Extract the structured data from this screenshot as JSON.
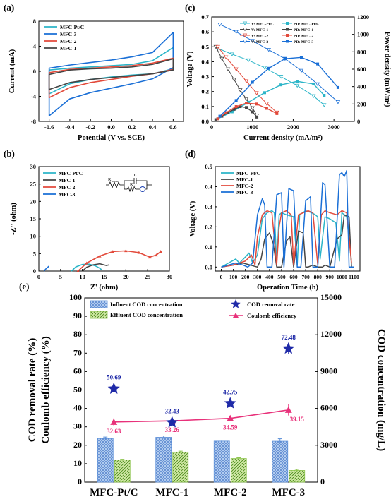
{
  "chart_data": [
    {
      "panel": "(a)",
      "type": "line",
      "xlabel": "Potential (V vs. SCE)",
      "ylabel": "Current (mA)",
      "xlim": [
        -0.7,
        0.7
      ],
      "ylim": [
        -8,
        8
      ],
      "xticks": [
        -0.6,
        -0.4,
        -0.2,
        0.0,
        0.2,
        0.4,
        0.6
      ],
      "xtick_labels": [
        "-0.6",
        "-0.4",
        "-0.2",
        "0.0",
        "0.2",
        "0.4",
        "0.6"
      ],
      "yticks": [
        -8,
        -4,
        0,
        4,
        8
      ],
      "legend_position": "top-left",
      "series": [
        {
          "name": "MFC-Pt/C",
          "color": "#2bb5c8",
          "vmin": 3.8,
          "vmax": -3.6,
          "x": [
            -0.6,
            -0.4,
            -0.2,
            0.0,
            0.2,
            0.4,
            0.6
          ],
          "upper": [
            0.2,
            0.5,
            0.7,
            0.9,
            1.1,
            1.7,
            3.8
          ],
          "lower": [
            -3.6,
            -2.0,
            -1.3,
            -0.9,
            -0.6,
            -0.4,
            0.4
          ]
        },
        {
          "name": "MFC-3",
          "color": "#1a6fd6",
          "vmin": 6.2,
          "vmax": -7.1,
          "x": [
            -0.6,
            -0.4,
            -0.2,
            0.0,
            0.2,
            0.4,
            0.6
          ],
          "upper": [
            0.5,
            1.0,
            1.4,
            1.8,
            2.3,
            3.0,
            6.2
          ],
          "lower": [
            -7.1,
            -4.4,
            -3.4,
            -2.7,
            -2.0,
            -1.2,
            0.6
          ]
        },
        {
          "name": "MFC-2",
          "color": "#e24a3b",
          "vmin": 2.1,
          "vmax": -4.2,
          "x": [
            -0.6,
            -0.4,
            -0.2,
            0.0,
            0.2,
            0.4,
            0.6
          ],
          "upper": [
            -0.2,
            0.3,
            0.5,
            0.7,
            0.9,
            1.3,
            2.1
          ],
          "lower": [
            -4.2,
            -2.6,
            -1.8,
            -1.3,
            -0.8,
            -0.4,
            0.3
          ]
        },
        {
          "name": "MFC-1",
          "color": "#444444",
          "vmin": 2.0,
          "vmax": -2.9,
          "x": [
            -0.6,
            -0.4,
            -0.2,
            0.0,
            0.2,
            0.4,
            0.6
          ],
          "upper": [
            -0.5,
            0.2,
            0.4,
            0.5,
            0.7,
            1.1,
            2.0
          ],
          "lower": [
            -2.9,
            -1.8,
            -1.3,
            -1.0,
            -0.7,
            -0.4,
            0.2
          ]
        }
      ]
    },
    {
      "panel": "(c)",
      "type": "line",
      "xlabel": "Current density (mA/m²)",
      "ylabel": "Voltage (V)",
      "y2label": "Power density (mW/m²)",
      "xlim": [
        0,
        3500
      ],
      "ylim": [
        0,
        0.7
      ],
      "y2lim": [
        0,
        1200
      ],
      "xticks": [
        0,
        1000,
        2000,
        3000
      ],
      "yticks": [
        0.0,
        0.1,
        0.2,
        0.3,
        0.4,
        0.5,
        0.6,
        0.7
      ],
      "y2ticks": [
        0,
        200,
        400,
        600,
        800,
        1000,
        1200
      ],
      "legend_position": "top-right",
      "voltage_series": [
        {
          "name": "V: MFC-Pt/C",
          "color": "#2bb5c8",
          "x": [
            150,
            500,
            900,
            1300,
            1700,
            2100,
            2500,
            2760
          ],
          "values": [
            0.49,
            0.45,
            0.41,
            0.36,
            0.3,
            0.24,
            0.17,
            0.11
          ]
        },
        {
          "name": "V: MFC-1",
          "color": "#444444",
          "x": [
            100,
            250,
            400,
            550,
            700,
            850,
            1000,
            1110
          ],
          "values": [
            0.5,
            0.42,
            0.35,
            0.28,
            0.21,
            0.15,
            0.09,
            0.04
          ]
        },
        {
          "name": "V: MFC-2",
          "color": "#e24a3b",
          "x": [
            150,
            350,
            600,
            850,
            1100,
            1350,
            1600
          ],
          "values": [
            0.5,
            0.43,
            0.35,
            0.27,
            0.19,
            0.12,
            0.06
          ]
        },
        {
          "name": "V: MFC-3",
          "color": "#1a6fd6",
          "x": [
            200,
            600,
            1000,
            1400,
            1800,
            2200,
            2600,
            3100
          ],
          "values": [
            0.65,
            0.6,
            0.54,
            0.48,
            0.42,
            0.34,
            0.25,
            0.13
          ]
        }
      ],
      "power_series": [
        {
          "name": "PD: MFC-Pt/C",
          "color": "#2bb5c8",
          "x": [
            150,
            500,
            900,
            1300,
            1700,
            2100,
            2500,
            2760
          ],
          "values": [
            30,
            110,
            220,
            330,
            420,
            460,
            430,
            300
          ]
        },
        {
          "name": "PD: MFC-1",
          "color": "#444444",
          "x": [
            100,
            250,
            400,
            550,
            700,
            850,
            1000,
            1110
          ],
          "values": [
            20,
            60,
            100,
            140,
            170,
            160,
            110,
            50
          ]
        },
        {
          "name": "PD: MFC-2",
          "color": "#e24a3b",
          "x": [
            150,
            350,
            600,
            850,
            1100,
            1350,
            1600
          ],
          "values": [
            30,
            100,
            170,
            210,
            200,
            150,
            90
          ]
        },
        {
          "name": "PD: MFC-3",
          "color": "#1a6fd6",
          "x": [
            200,
            600,
            1000,
            1400,
            1800,
            2200,
            2600,
            3100
          ],
          "values": [
            60,
            240,
            450,
            610,
            720,
            735,
            660,
            390
          ]
        }
      ]
    },
    {
      "panel": "(b)",
      "type": "line",
      "xlabel": "Z' (ohm)",
      "ylabel": "-Z'' (ohm)",
      "xlim": [
        0,
        30
      ],
      "ylim": [
        0,
        30
      ],
      "xticks": [
        0,
        5,
        10,
        15,
        20,
        25,
        30
      ],
      "yticks": [
        0,
        5,
        10,
        15,
        20,
        25,
        30
      ],
      "legend_position": "top-left",
      "circuit_labels": [
        "R",
        "ohm",
        "C",
        "R",
        "ct"
      ],
      "series": [
        {
          "name": "MFC-Pt/C",
          "color": "#2bb5c8",
          "x": [
            7.5,
            8.5,
            10,
            11.5,
            13,
            14,
            14.5
          ],
          "values": [
            0,
            1.2,
            1.9,
            2.0,
            1.5,
            0.8,
            0.3
          ]
        },
        {
          "name": "MFC-1",
          "color": "#444444",
          "x": [
            10,
            11,
            12.5,
            14,
            15.5,
            16.2
          ],
          "values": [
            0,
            1.1,
            1.8,
            2.1,
            1.6,
            1.8
          ]
        },
        {
          "name": "MFC-2",
          "color": "#e24a3b",
          "x": [
            9,
            11,
            14,
            17,
            20,
            23,
            25.5,
            27,
            28
          ],
          "values": [
            0,
            2.3,
            4.3,
            5.6,
            5.8,
            5.3,
            4.0,
            4.6,
            5.6
          ]
        },
        {
          "name": "MFC-3",
          "color": "#1a6fd6",
          "x": [
            1.2,
            1.6,
            2.0,
            2.3
          ],
          "values": [
            0,
            0.6,
            1.0,
            1.4
          ]
        }
      ]
    },
    {
      "panel": "(d)",
      "type": "line",
      "xlabel": "Operation Time (h)",
      "ylabel": "Voltage (V)",
      "xlim": [
        -50,
        1150
      ],
      "ylim": [
        -0.02,
        0.5
      ],
      "xticks": [
        0,
        100,
        200,
        300,
        400,
        500,
        600,
        700,
        800,
        900,
        1000,
        1100
      ],
      "yticks": [
        0.0,
        0.1,
        0.2,
        0.3,
        0.4,
        0.5
      ],
      "legend_position": "top-left",
      "series": [
        {
          "name": "MFC-Pt/C",
          "color": "#2bb5c8",
          "x": [
            0,
            60,
            120,
            150,
            200,
            230,
            260,
            300,
            340,
            380,
            420,
            440,
            460,
            480,
            500,
            540,
            600,
            630,
            650,
            700,
            750,
            780,
            800,
            820,
            860,
            900,
            950,
            980,
            1000,
            1040,
            1080
          ],
          "values": [
            0,
            0.02,
            0.04,
            0.02,
            0.05,
            0.07,
            0.02,
            0.06,
            0.24,
            0.27,
            0.28,
            0.27,
            0.02,
            0.26,
            0.27,
            0.26,
            0.25,
            0.01,
            0.26,
            0.28,
            0.27,
            0.26,
            0.25,
            0.04,
            0.25,
            0.24,
            0.22,
            0.03,
            0.27,
            0.25,
            0.02
          ]
        },
        {
          "name": "MFC-1",
          "color": "#444444",
          "x": [
            0,
            100,
            180,
            240,
            300,
            330,
            360,
            400,
            430,
            460,
            500,
            540,
            570,
            600,
            640,
            680,
            700,
            720,
            760,
            800,
            840,
            860,
            900,
            960,
            1000,
            1020,
            1060,
            1080
          ],
          "values": [
            0,
            0.01,
            0.02,
            0.01,
            0.0,
            0.04,
            0.14,
            0.17,
            0.12,
            0.0,
            0.0,
            0.13,
            0.15,
            0.0,
            0.18,
            0.17,
            0.0,
            0.0,
            0.01,
            0.0,
            0.0,
            0.01,
            0.0,
            0.14,
            0.16,
            0.26,
            0.25,
            0.0
          ]
        },
        {
          "name": "MFC-2",
          "color": "#e24a3b",
          "x": [
            0,
            100,
            200,
            250,
            280,
            300,
            340,
            380,
            420,
            460,
            480,
            500,
            540,
            580,
            600,
            640,
            680,
            720,
            760,
            800,
            830,
            860,
            900,
            960,
            1000,
            1040,
            1080
          ],
          "values": [
            0,
            0.01,
            0.03,
            0.06,
            0.01,
            0.15,
            0.26,
            0.28,
            0.27,
            0.01,
            0.2,
            0.27,
            0.28,
            0.26,
            0.01,
            0.26,
            0.27,
            0.28,
            0.27,
            0.01,
            0.26,
            0.28,
            0.27,
            0.26,
            0.28,
            0.27,
            0.02
          ]
        },
        {
          "name": "MFC-3",
          "color": "#1a6fd6",
          "x": [
            0,
            60,
            120,
            180,
            220,
            260,
            300,
            340,
            360,
            380,
            420,
            460,
            500,
            520,
            560,
            600,
            630,
            660,
            700,
            740,
            760,
            800,
            840,
            860,
            900,
            940,
            980,
            1000,
            1020,
            1040,
            1060,
            1080,
            1100
          ],
          "values": [
            0,
            0.01,
            0.02,
            0.01,
            0.0,
            0.02,
            0.26,
            0.34,
            0.31,
            0.0,
            0.0,
            0.36,
            0.37,
            0.0,
            0.39,
            0.38,
            0.0,
            0.0,
            0.33,
            0.35,
            0.0,
            0.0,
            0.42,
            0.41,
            0.0,
            0.0,
            0.46,
            0.47,
            0.45,
            0.48,
            0.0,
            0.0,
            0.0
          ]
        }
      ]
    },
    {
      "panel": "(e)",
      "type": "bar",
      "categories": [
        "MFC-Pt/C",
        "MFC-1",
        "MFC-2",
        "MFC-3"
      ],
      "ylabel": "COD removal rate (%)",
      "ylabel2": "Coulomb efficiency (%)",
      "y2label": "COD concentration (mg/L)",
      "ylim": [
        0,
        100
      ],
      "y2lim": [
        0,
        15000
      ],
      "yticks": [
        0,
        10,
        20,
        30,
        40,
        50,
        60,
        70,
        80,
        90,
        100
      ],
      "y2ticks": [
        0,
        3000,
        6000,
        9000,
        12000,
        15000
      ],
      "legend_position": "top",
      "bar_series": [
        {
          "name": "Influent COD concentration",
          "color": "#5b8fd8",
          "values": [
            3550,
            3650,
            3340,
            3330
          ],
          "errors": [
            120,
            110,
            80,
            200
          ]
        },
        {
          "name": "Effluent COD concentration",
          "color": "#8bc34a",
          "values": [
            1800,
            2450,
            1920,
            950
          ],
          "errors": [
            60,
            70,
            60,
            90
          ]
        }
      ],
      "point_series": [
        {
          "name": "COD removal rate",
          "color": "#1f2aa8",
          "values": [
            50.69,
            32.43,
            42.75,
            72.48
          ],
          "labels": [
            "50.69",
            "32.43",
            "42.75",
            "72.48"
          ],
          "errors": [
            1.5,
            1.5,
            1.5,
            3.0
          ]
        },
        {
          "name": "Coulomb efficiency",
          "color": "#e8317a",
          "values": [
            32.63,
            33.26,
            34.59,
            39.15
          ],
          "labels": [
            "32.63",
            "33.26",
            "34.59",
            "39.15"
          ],
          "errors": [
            2.0,
            2.0,
            1.5,
            3.0
          ]
        }
      ]
    }
  ]
}
